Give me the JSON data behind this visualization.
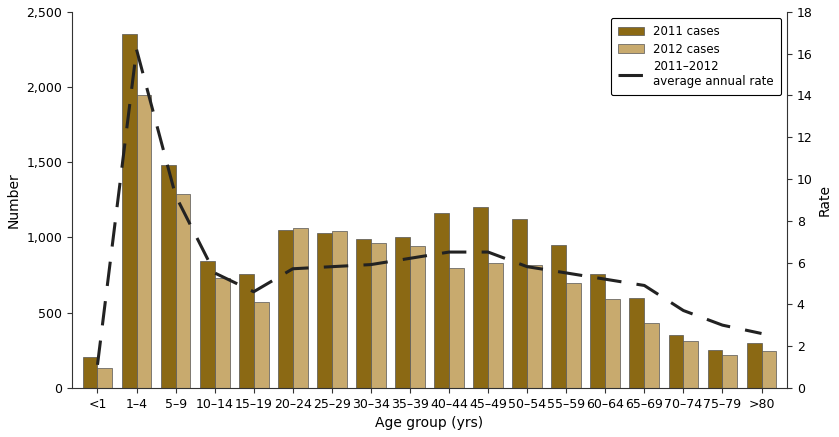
{
  "age_groups": [
    "<1",
    "1–4",
    "5–9",
    "10–14",
    "15–19",
    "20–24",
    "25–29",
    "30–34",
    "35–39",
    "40–44",
    "45–49",
    "50–54",
    "55–59",
    "60–64",
    "65–69",
    "70–74",
    "75–79",
    ">80"
  ],
  "cases_2011": [
    205,
    2350,
    1480,
    840,
    760,
    1050,
    1030,
    990,
    1000,
    1160,
    1200,
    1120,
    950,
    760,
    600,
    350,
    250,
    300
  ],
  "cases_2012": [
    130,
    1950,
    1290,
    730,
    570,
    1060,
    1040,
    960,
    940,
    800,
    830,
    820,
    700,
    590,
    430,
    310,
    220,
    245
  ],
  "avg_annual_rate": [
    1.1,
    16.2,
    9.2,
    5.5,
    4.6,
    5.7,
    5.8,
    5.9,
    6.2,
    6.5,
    6.5,
    5.8,
    5.5,
    5.2,
    4.9,
    3.7,
    3.0,
    2.6
  ],
  "color_2011": "#8B6914",
  "color_2012": "#C8AA6E",
  "line_color": "#222222",
  "ylabel_left": "Number",
  "ylabel_right": "Rate",
  "xlabel": "Age group (yrs)",
  "ylim_left": [
    0,
    2500
  ],
  "ylim_right": [
    0,
    18
  ],
  "yticks_left": [
    0,
    500,
    1000,
    1500,
    2000,
    2500
  ],
  "yticks_right": [
    0,
    2,
    4,
    6,
    8,
    10,
    12,
    14,
    16,
    18
  ],
  "legend_label_2011": "2011 cases",
  "legend_label_2012": "2012 cases",
  "legend_label_rate_line1": "2011–2012",
  "legend_label_rate_line2": "average annual rate",
  "figsize": [
    8.39,
    4.37
  ],
  "dpi": 100
}
